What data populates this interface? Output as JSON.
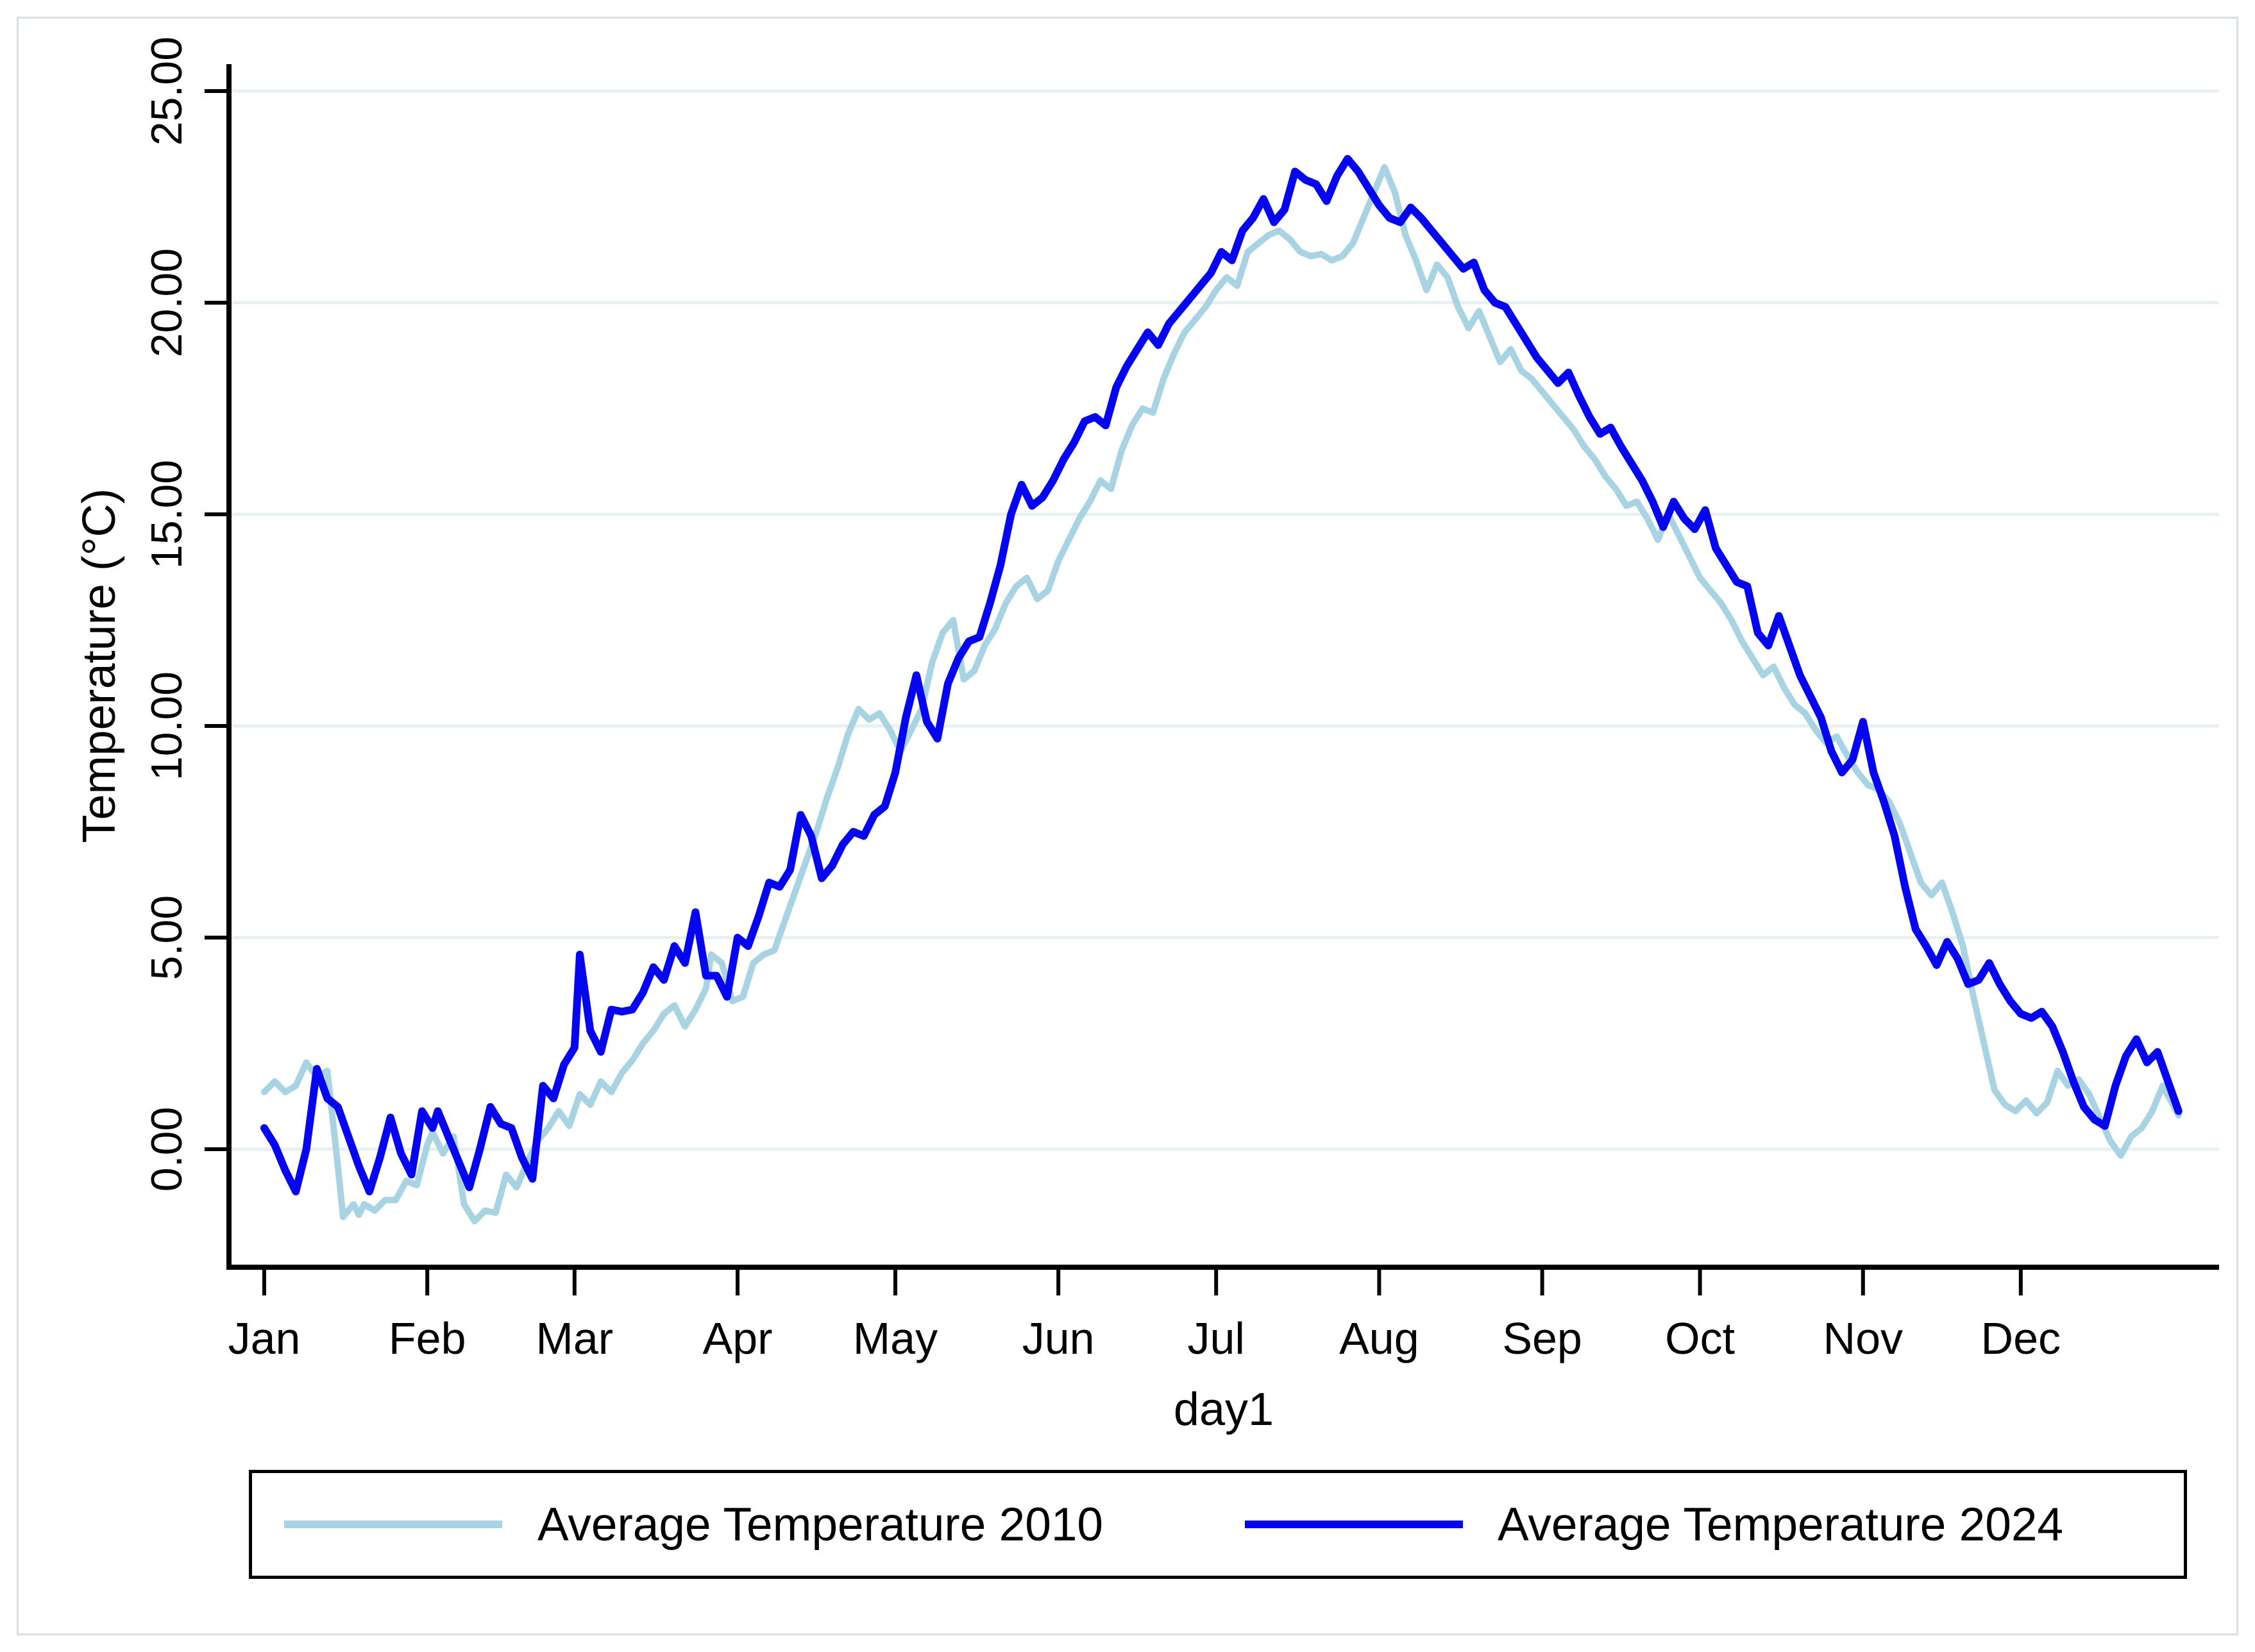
{
  "figure": {
    "background": "#ffffff",
    "outer_border_color": "#d9e0e3"
  },
  "chart_data": {
    "type": "line",
    "title": "",
    "xlabel": "day1",
    "ylabel": "Temperature (°C)",
    "grid": {
      "horizontal": true,
      "color": "#e7f0f2"
    },
    "axis_color": "#000000",
    "x_axis": {
      "unit": "day-of-year",
      "domain_days": [
        0,
        370
      ],
      "tick_days": [
        0,
        31,
        59,
        90,
        120,
        151,
        181,
        212,
        243,
        273,
        304,
        334
      ],
      "tick_labels": [
        "Jan",
        "Feb",
        "Mar",
        "Apr",
        "May",
        "Jun",
        "Jul",
        "Aug",
        "Sep",
        "Oct",
        "Nov",
        "Dec"
      ]
    },
    "y_axis": {
      "ylim": [
        -2.8,
        25.6
      ],
      "ticks": [
        0,
        5,
        10,
        15,
        20,
        25
      ],
      "tick_labels": [
        "0.00",
        "5.00",
        "10.00",
        "15.00",
        "20.00",
        "25.00"
      ]
    },
    "legend_position": "bottom",
    "series": [
      {
        "name": "Average Temperature 2010",
        "color": "#a8d3e3",
        "stroke_width": 10,
        "x": [
          0,
          2,
          4,
          6,
          8,
          10,
          12,
          14,
          15,
          17,
          18,
          19,
          21,
          23,
          25,
          27,
          29,
          31,
          32,
          34,
          36,
          38,
          40,
          42,
          44,
          46,
          48,
          50,
          52,
          54,
          56,
          58,
          60,
          62,
          64,
          66,
          68,
          70,
          72,
          74,
          76,
          78,
          80,
          82,
          84,
          85,
          87,
          89,
          91,
          93,
          95,
          97,
          99,
          101,
          103,
          105,
          107,
          109,
          111,
          113,
          115,
          117,
          119,
          121,
          123,
          125,
          127,
          129,
          131,
          133,
          135,
          137,
          139,
          141,
          143,
          145,
          147,
          149,
          151,
          153,
          155,
          157,
          159,
          161,
          163,
          165,
          167,
          169,
          171,
          173,
          175,
          177,
          179,
          181,
          183,
          185,
          187,
          189,
          191,
          193,
          195,
          197,
          199,
          201,
          203,
          205,
          207,
          209,
          211,
          213,
          215,
          217,
          219,
          221,
          223,
          225,
          227,
          229,
          231,
          233,
          235,
          237,
          239,
          241,
          243,
          245,
          247,
          249,
          251,
          253,
          255,
          257,
          259,
          261,
          263,
          265,
          267,
          269,
          271,
          273,
          275,
          277,
          279,
          281,
          283,
          285,
          287,
          289,
          291,
          293,
          295,
          297,
          299,
          301,
          303,
          305,
          307,
          309,
          311,
          313,
          315,
          317,
          319,
          321,
          323,
          325,
          327,
          329,
          331,
          333,
          335,
          337,
          339,
          341,
          343,
          345,
          347,
          349,
          351,
          353,
          355,
          357,
          359,
          361,
          364
        ],
        "y": [
          1.35,
          1.6,
          1.35,
          1.5,
          2.05,
          1.7,
          1.85,
          -0.4,
          -1.6,
          -1.3,
          -1.55,
          -1.3,
          -1.45,
          -1.2,
          -1.2,
          -0.75,
          -0.85,
          0.1,
          0.4,
          -0.1,
          0.3,
          -1.3,
          -1.7,
          -1.45,
          -1.5,
          -0.6,
          -0.9,
          -0.3,
          0.2,
          0.5,
          0.9,
          0.55,
          1.3,
          1.05,
          1.6,
          1.35,
          1.8,
          2.1,
          2.5,
          2.8,
          3.2,
          3.4,
          2.9,
          3.3,
          3.8,
          4.6,
          4.4,
          3.5,
          3.6,
          4.4,
          4.6,
          4.7,
          5.4,
          6.1,
          6.8,
          7.5,
          8.3,
          9.0,
          9.8,
          10.4,
          10.15,
          10.3,
          9.9,
          9.4,
          9.9,
          10.4,
          11.5,
          12.2,
          12.5,
          11.1,
          11.3,
          11.9,
          12.3,
          12.9,
          13.3,
          13.5,
          13.0,
          13.2,
          13.9,
          14.4,
          14.9,
          15.3,
          15.8,
          15.6,
          16.5,
          17.1,
          17.5,
          17.4,
          18.2,
          18.8,
          19.3,
          19.6,
          19.9,
          20.3,
          20.6,
          20.4,
          21.2,
          21.4,
          21.6,
          21.7,
          21.5,
          21.2,
          21.1,
          21.15,
          21.0,
          21.1,
          21.4,
          22.0,
          22.6,
          23.2,
          22.6,
          21.6,
          21.0,
          20.3,
          20.9,
          20.6,
          19.9,
          19.4,
          19.8,
          19.2,
          18.6,
          18.9,
          18.4,
          18.2,
          17.9,
          17.6,
          17.3,
          17.0,
          16.6,
          16.3,
          15.9,
          15.6,
          15.2,
          15.3,
          14.9,
          14.4,
          15.0,
          14.5,
          14.0,
          13.5,
          13.2,
          12.9,
          12.5,
          12.0,
          11.6,
          11.2,
          11.4,
          10.9,
          10.5,
          10.3,
          9.9,
          9.6,
          9.75,
          9.3,
          8.9,
          8.6,
          8.5,
          8.2,
          7.7,
          7.0,
          6.3,
          6.0,
          6.3,
          5.6,
          4.8,
          3.6,
          2.5,
          1.4,
          1.05,
          0.9,
          1.15,
          0.85,
          1.1,
          1.85,
          1.5,
          1.65,
          1.3,
          0.75,
          0.2,
          -0.15,
          0.3,
          0.5,
          0.9,
          1.5,
          0.8
        ]
      },
      {
        "name": "Average Temperature 2024",
        "color": "#0505f0",
        "stroke_width": 12,
        "x": [
          0,
          2,
          4,
          6,
          8,
          10,
          12,
          14,
          16,
          18,
          20,
          22,
          24,
          26,
          28,
          30,
          32,
          33,
          35,
          37,
          39,
          41,
          43,
          45,
          47,
          49,
          51,
          53,
          55,
          57,
          59,
          60,
          62,
          64,
          66,
          68,
          70,
          72,
          74,
          76,
          78,
          80,
          82,
          84,
          86,
          88,
          90,
          92,
          94,
          96,
          98,
          100,
          102,
          104,
          106,
          108,
          110,
          112,
          114,
          116,
          118,
          120,
          122,
          124,
          126,
          128,
          130,
          132,
          134,
          136,
          138,
          140,
          142,
          144,
          146,
          148,
          150,
          152,
          154,
          156,
          158,
          160,
          162,
          164,
          166,
          168,
          170,
          172,
          174,
          176,
          178,
          180,
          182,
          184,
          186,
          188,
          190,
          192,
          194,
          196,
          198,
          200,
          202,
          204,
          206,
          208,
          210,
          212,
          214,
          216,
          218,
          220,
          222,
          224,
          226,
          228,
          230,
          232,
          234,
          236,
          238,
          240,
          242,
          244,
          246,
          248,
          250,
          252,
          254,
          256,
          258,
          260,
          262,
          264,
          266,
          268,
          270,
          272,
          274,
          276,
          278,
          280,
          282,
          284,
          286,
          288,
          290,
          292,
          294,
          296,
          298,
          300,
          302,
          304,
          306,
          308,
          310,
          312,
          314,
          316,
          318,
          320,
          322,
          324,
          326,
          328,
          330,
          332,
          334,
          336,
          338,
          340,
          342,
          344,
          346,
          348,
          350,
          352,
          354,
          356,
          358,
          360,
          362,
          364
        ],
        "y": [
          0.5,
          0.1,
          -0.5,
          -1.0,
          0.0,
          1.9,
          1.2,
          1.0,
          0.3,
          -0.4,
          -1.0,
          -0.2,
          0.75,
          -0.1,
          -0.6,
          0.9,
          0.5,
          0.9,
          0.3,
          -0.3,
          -0.9,
          0.0,
          1.0,
          0.6,
          0.5,
          -0.2,
          -0.7,
          1.5,
          1.2,
          2.0,
          2.4,
          4.6,
          2.8,
          2.3,
          3.3,
          3.25,
          3.3,
          3.7,
          4.3,
          4.0,
          4.8,
          4.4,
          5.6,
          4.1,
          4.1,
          3.6,
          5.0,
          4.8,
          5.5,
          6.3,
          6.2,
          6.6,
          7.9,
          7.4,
          6.4,
          6.7,
          7.2,
          7.5,
          7.4,
          7.9,
          8.1,
          8.9,
          10.2,
          11.2,
          10.1,
          9.7,
          11.0,
          11.6,
          12.0,
          12.1,
          12.9,
          13.8,
          15.0,
          15.7,
          15.2,
          15.4,
          15.8,
          16.3,
          16.7,
          17.2,
          17.3,
          17.1,
          18.0,
          18.5,
          18.9,
          19.3,
          19.0,
          19.5,
          19.8,
          20.1,
          20.4,
          20.7,
          21.2,
          21.0,
          21.7,
          22.0,
          22.45,
          21.9,
          22.2,
          23.1,
          22.9,
          22.8,
          22.4,
          23.0,
          23.4,
          23.1,
          22.7,
          22.3,
          22.0,
          21.9,
          22.25,
          22.0,
          21.7,
          21.4,
          21.1,
          20.8,
          20.95,
          20.3,
          20.0,
          19.9,
          19.5,
          19.1,
          18.7,
          18.4,
          18.1,
          18.35,
          17.8,
          17.3,
          16.9,
          17.05,
          16.6,
          16.2,
          15.8,
          15.3,
          14.7,
          15.3,
          14.9,
          14.65,
          15.1,
          14.2,
          13.8,
          13.4,
          13.3,
          12.2,
          11.9,
          12.6,
          11.9,
          11.2,
          10.7,
          10.2,
          9.4,
          8.9,
          9.2,
          10.1,
          8.9,
          8.2,
          7.4,
          6.2,
          5.2,
          4.8,
          4.35,
          4.9,
          4.5,
          3.9,
          4.0,
          4.4,
          3.9,
          3.5,
          3.2,
          3.1,
          3.25,
          2.9,
          2.3,
          1.6,
          1.0,
          0.7,
          0.55,
          1.5,
          2.2,
          2.6,
          2.05,
          2.3,
          1.6,
          0.9
        ]
      }
    ]
  }
}
